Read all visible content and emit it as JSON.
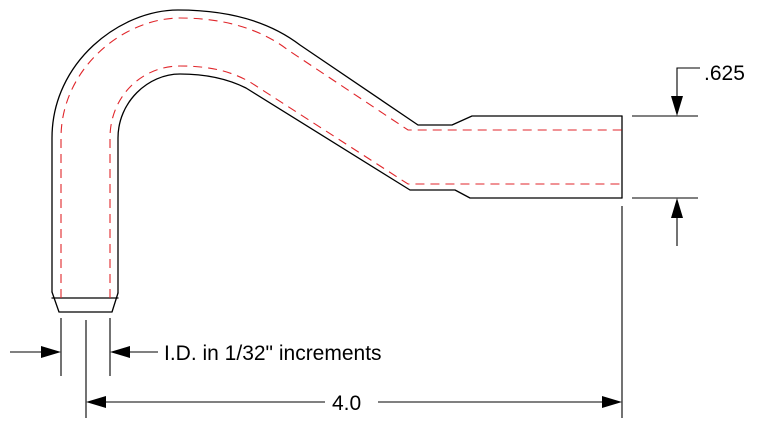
{
  "diagram": {
    "labels": {
      "wall_thickness": ".625",
      "inner_diameter_note": "I.D. in 1/32\" increments",
      "overall_length": "4.0"
    },
    "colors": {
      "outline": "#000000",
      "centerline": "#e0262b",
      "background": "#ffffff"
    }
  }
}
